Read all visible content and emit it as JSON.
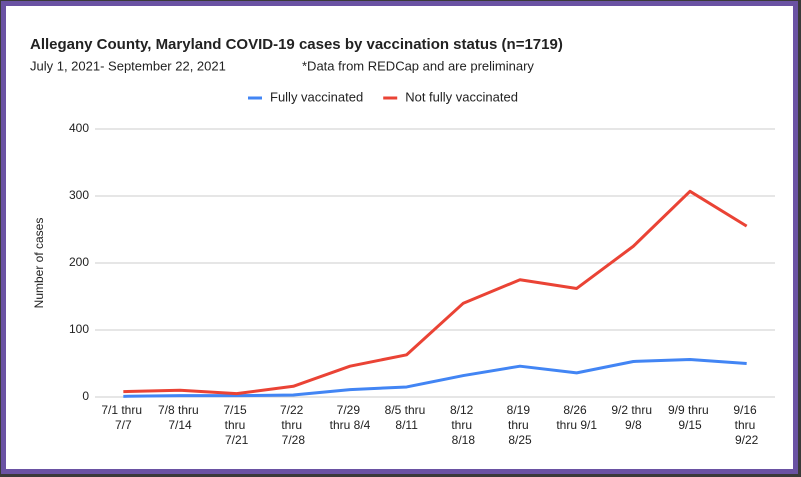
{
  "chart_data": {
    "type": "line",
    "title": "Allegany County, Maryland COVID-19 cases by vaccination status (n=1719)",
    "subtitle": "July 1, 2021- September 22, 2021",
    "note": "*Data from REDCap and are preliminary",
    "y_label": "Number of cases",
    "categories": [
      "7/1 thru 7/7",
      "7/8 thru 7/14",
      "7/15 thru 7/21",
      "7/22 thru 7/28",
      "7/29 thru 8/4",
      "8/5 thru 8/11",
      "8/12 thru 8/18",
      "8/19 thru 8/25",
      "8/26 thru 9/1",
      "9/2 thru 9/8",
      "9/9 thru 9/15",
      "9/16 thru 9/22"
    ],
    "series": [
      {
        "name": "Fully vaccinated",
        "color": "#4285f4",
        "values": [
          1,
          2,
          2,
          3,
          11,
          15,
          32,
          46,
          36,
          53,
          56,
          50
        ]
      },
      {
        "name": "Not fully vaccinated",
        "color": "#ea4335",
        "values": [
          8,
          10,
          5,
          16,
          46,
          63,
          140,
          175,
          162,
          225,
          307,
          255
        ]
      }
    ],
    "ylim": [
      0,
      400
    ],
    "yticks": [
      0,
      100,
      200,
      300,
      400
    ],
    "grid": true,
    "legend": "top"
  }
}
